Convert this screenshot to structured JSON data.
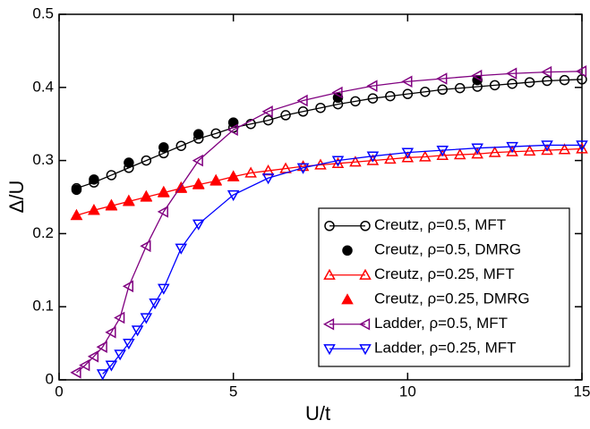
{
  "chart_data": {
    "type": "line",
    "xlabel": "U/t",
    "ylabel": "Δ/U",
    "xlim": [
      0,
      15
    ],
    "ylim": [
      0,
      0.5
    ],
    "xticks": [
      0,
      5,
      10,
      15
    ],
    "yticks": [
      0,
      0.1,
      0.2,
      0.3,
      0.4,
      0.5
    ],
    "legend": "lower right",
    "series": [
      {
        "name": "Creutz, ρ=0.5, MFT",
        "color": "#000000",
        "marker": "circle",
        "filled": false,
        "line": true,
        "x": [
          0.5,
          1,
          1.5,
          2,
          2.5,
          3,
          3.5,
          4,
          4.5,
          5,
          5.5,
          6,
          6.5,
          7,
          7.5,
          8,
          8.5,
          9,
          9.5,
          10,
          10.5,
          11,
          11.5,
          12,
          12.5,
          13,
          13.5,
          14,
          14.5,
          15
        ],
        "values": [
          0.262,
          0.27,
          0.28,
          0.29,
          0.3,
          0.31,
          0.32,
          0.33,
          0.337,
          0.345,
          0.35,
          0.355,
          0.362,
          0.367,
          0.372,
          0.377,
          0.381,
          0.385,
          0.388,
          0.391,
          0.394,
          0.397,
          0.399,
          0.401,
          0.403,
          0.405,
          0.407,
          0.409,
          0.41,
          0.411
        ]
      },
      {
        "name": "Creutz, ρ=0.5, DMRG",
        "color": "#000000",
        "marker": "circle",
        "filled": true,
        "line": false,
        "x": [
          0.5,
          1,
          2,
          3,
          4,
          5,
          8,
          12
        ],
        "values": [
          0.26,
          0.274,
          0.297,
          0.318,
          0.336,
          0.352,
          0.386,
          0.41
        ]
      },
      {
        "name": "Creutz, ρ=0.25, MFT",
        "color": "#ff0000",
        "marker": "triangle-up",
        "filled": false,
        "line": true,
        "x": [
          0.5,
          1,
          1.5,
          2,
          2.5,
          3,
          3.5,
          4,
          4.5,
          5,
          5.5,
          6,
          6.5,
          7,
          7.5,
          8,
          8.5,
          9,
          9.5,
          10,
          10.5,
          11,
          11.5,
          12,
          12.5,
          13,
          13.5,
          14,
          14.5,
          15
        ],
        "values": [
          0.225,
          0.232,
          0.238,
          0.244,
          0.25,
          0.256,
          0.262,
          0.267,
          0.272,
          0.278,
          0.283,
          0.286,
          0.289,
          0.292,
          0.294,
          0.296,
          0.298,
          0.3,
          0.302,
          0.304,
          0.305,
          0.307,
          0.308,
          0.309,
          0.311,
          0.312,
          0.313,
          0.314,
          0.315,
          0.316
        ]
      },
      {
        "name": "Creutz, ρ=0.25, DMRG",
        "color": "#ff0000",
        "marker": "triangle-up",
        "filled": true,
        "line": false,
        "x": [
          0.5,
          1,
          1.5,
          2,
          2.5,
          3,
          3.5,
          4,
          4.5,
          5
        ],
        "values": [
          0.225,
          0.232,
          0.239,
          0.245,
          0.251,
          0.257,
          0.263,
          0.268,
          0.273,
          0.278
        ]
      },
      {
        "name": "Ladder, ρ=0.5, MFT",
        "color": "#800080",
        "marker": "triangle-left",
        "filled": false,
        "line": true,
        "x": [
          0.5,
          0.75,
          1,
          1.25,
          1.5,
          1.75,
          2,
          2.5,
          3,
          4,
          5,
          6,
          7,
          8,
          9,
          10,
          11,
          12,
          13,
          14,
          15
        ],
        "values": [
          0.01,
          0.02,
          0.032,
          0.045,
          0.065,
          0.085,
          0.128,
          0.183,
          0.23,
          0.3,
          0.342,
          0.367,
          0.382,
          0.393,
          0.402,
          0.408,
          0.412,
          0.416,
          0.419,
          0.421,
          0.422
        ]
      },
      {
        "name": "Ladder, ρ=0.25, MFT",
        "color": "#0000ff",
        "marker": "triangle-down",
        "filled": false,
        "line": true,
        "x": [
          1.25,
          1.5,
          1.75,
          2,
          2.25,
          2.5,
          2.75,
          3,
          3.5,
          4,
          5,
          6,
          7,
          8,
          9,
          10,
          11,
          12,
          13,
          14,
          15
        ],
        "values": [
          0.008,
          0.02,
          0.035,
          0.05,
          0.068,
          0.085,
          0.105,
          0.125,
          0.18,
          0.213,
          0.253,
          0.276,
          0.29,
          0.3,
          0.306,
          0.311,
          0.314,
          0.317,
          0.319,
          0.321,
          0.321
        ]
      }
    ]
  }
}
